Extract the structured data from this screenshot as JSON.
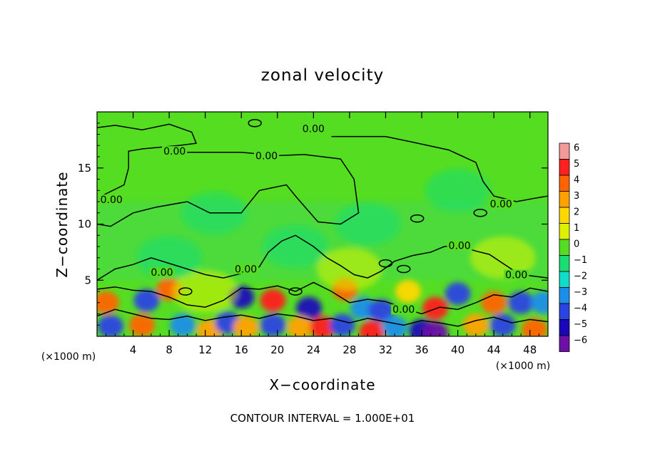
{
  "chart_data": {
    "type": "heatmap",
    "title": "zonal velocity",
    "xlabel": "X−coordinate",
    "ylabel": "Z−coordinate",
    "x_unit_left": "(×1000 m)",
    "x_unit_right": "(×1000 m)",
    "footer": "CONTOUR INTERVAL = 1.000E+01",
    "xlim": [
      0,
      50
    ],
    "ylim": [
      0,
      20
    ],
    "x_ticks": [
      4,
      8,
      12,
      16,
      20,
      24,
      28,
      32,
      36,
      40,
      44,
      48
    ],
    "y_ticks": [
      5,
      10,
      15
    ],
    "colorbar": {
      "levels": [
        6,
        5,
        4,
        3,
        2,
        1,
        0,
        -1,
        -2,
        -3,
        -4,
        -5,
        -6
      ],
      "labels": [
        "6",
        "5",
        "4",
        "3",
        "2",
        "1",
        "0",
        "−1",
        "−2",
        "−3",
        "−4",
        "−5",
        "−6"
      ],
      "colors": [
        "#f49a9a",
        "#ff2020",
        "#ff6400",
        "#ffa200",
        "#ffd800",
        "#ddf200",
        "#55dd22",
        "#18dd72",
        "#10dccc",
        "#1a8ee8",
        "#2a44e2",
        "#1a08b8",
        "#6c10a8"
      ]
    },
    "contour_labels": [
      {
        "text": "0.00",
        "x": 24,
        "y": 18.5
      },
      {
        "text": "0.00",
        "x": 8.6,
        "y": 16.5
      },
      {
        "text": "0.00",
        "x": 18.8,
        "y": 16.1
      },
      {
        "text": "0.00",
        "x": 1.6,
        "y": 12.2
      },
      {
        "text": "0.00",
        "x": 44.8,
        "y": 11.8
      },
      {
        "text": "0.00",
        "x": 40.2,
        "y": 8.1
      },
      {
        "text": "0.00",
        "x": 16.5,
        "y": 6.0
      },
      {
        "text": "0.00",
        "x": 46.5,
        "y": 5.5
      },
      {
        "text": "0.00",
        "x": 7.2,
        "y": 5.7
      },
      {
        "text": "0.00",
        "x": 34,
        "y": 2.4
      }
    ],
    "blobs": [
      {
        "x": 1.0,
        "y": 3.0,
        "v": 4
      },
      {
        "x": 5.5,
        "y": 3.2,
        "v": -4
      },
      {
        "x": 8.0,
        "y": 4.2,
        "v": 4
      },
      {
        "x": 9.5,
        "y": 1.0,
        "v": -3
      },
      {
        "x": 5.0,
        "y": 1.0,
        "v": 4
      },
      {
        "x": 1.5,
        "y": 0.9,
        "v": -4
      },
      {
        "x": 12.5,
        "y": 0.5,
        "v": 3
      },
      {
        "x": 14.5,
        "y": 1.2,
        "v": -4
      },
      {
        "x": 16.0,
        "y": 3.5,
        "v": -5
      },
      {
        "x": 16.5,
        "y": 0.8,
        "v": 3
      },
      {
        "x": 19.5,
        "y": 3.2,
        "v": 5
      },
      {
        "x": 19.5,
        "y": 1.0,
        "v": -4
      },
      {
        "x": 23.5,
        "y": 2.5,
        "v": -5
      },
      {
        "x": 22.5,
        "y": 0.8,
        "v": 3
      },
      {
        "x": 25.0,
        "y": 0.8,
        "v": 5
      },
      {
        "x": 27.5,
        "y": 4.2,
        "v": 4
      },
      {
        "x": 27.2,
        "y": 1.0,
        "v": -4
      },
      {
        "x": 29.5,
        "y": 2.5,
        "v": -3
      },
      {
        "x": 31.5,
        "y": 2.3,
        "v": -4
      },
      {
        "x": 30.5,
        "y": 0.4,
        "v": 5
      },
      {
        "x": 33.0,
        "y": 0.8,
        "v": -3
      },
      {
        "x": 36.0,
        "y": 0.5,
        "v": -5
      },
      {
        "x": 37.5,
        "y": 2.5,
        "v": 5
      },
      {
        "x": 37.5,
        "y": 0.3,
        "v": -6
      },
      {
        "x": 40.0,
        "y": 3.8,
        "v": -4
      },
      {
        "x": 42.0,
        "y": 1.0,
        "v": 3
      },
      {
        "x": 44.0,
        "y": 3.0,
        "v": 4
      },
      {
        "x": 45.0,
        "y": 1.0,
        "v": -4
      },
      {
        "x": 47.0,
        "y": 3.0,
        "v": -4
      },
      {
        "x": 48.5,
        "y": 0.6,
        "v": 4
      },
      {
        "x": 49.5,
        "y": 3.0,
        "v": -3
      },
      {
        "x": 34.5,
        "y": 4.0,
        "v": 2
      },
      {
        "x": 12.0,
        "y": 4.0,
        "v": 1
      },
      {
        "x": 22.0,
        "y": 8.0,
        "v": -1
      },
      {
        "x": 13.0,
        "y": 11.0,
        "v": -1
      },
      {
        "x": 30.0,
        "y": 10.0,
        "v": -1
      },
      {
        "x": 40.0,
        "y": 13.0,
        "v": -1
      },
      {
        "x": 8.0,
        "y": 7.0,
        "v": -1
      },
      {
        "x": 28.0,
        "y": 6.0,
        "v": 1
      },
      {
        "x": 45.0,
        "y": 7.0,
        "v": 1
      }
    ]
  }
}
